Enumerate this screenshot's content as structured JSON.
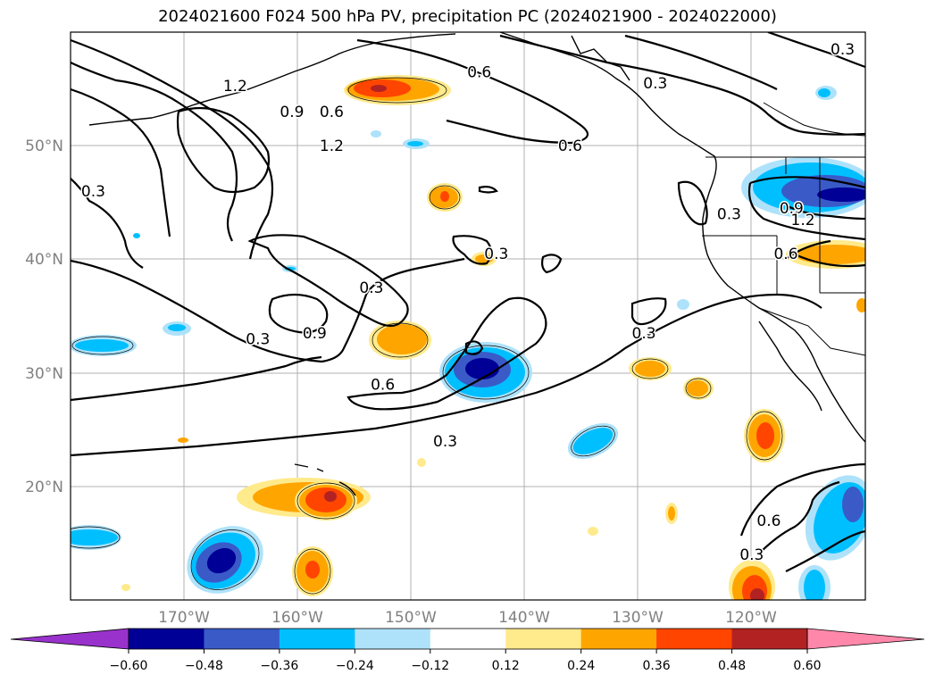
{
  "title": "2024021600 F024 500 hPa PV, precipitation PC (2024021900 - 2024022000)",
  "map": {
    "lat_labels": [
      "50°N",
      "40°N",
      "30°N",
      "20°N"
    ],
    "lon_labels": [
      "170°W",
      "160°W",
      "150°W",
      "140°W",
      "130°W",
      "120°W"
    ],
    "label_color": "#808080"
  },
  "contour_labels": [
    {
      "text": "1.2",
      "lon": -165.5,
      "lat": 55.3
    },
    {
      "text": "0.9",
      "lon": -160.5,
      "lat": 53.0
    },
    {
      "text": "0.6",
      "lon": -157.0,
      "lat": 53.0
    },
    {
      "text": "1.2",
      "lon": -157.0,
      "lat": 50.0
    },
    {
      "text": "0.3",
      "lon": -178.0,
      "lat": 46.0
    },
    {
      "text": "0.6",
      "lon": -144.0,
      "lat": 56.5
    },
    {
      "text": "0.6",
      "lon": -136.0,
      "lat": 50.0
    },
    {
      "text": "0.3",
      "lon": -128.5,
      "lat": 55.5
    },
    {
      "text": "0.3",
      "lon": -112.0,
      "lat": 58.5
    },
    {
      "text": "0.3",
      "lon": -142.5,
      "lat": 40.5
    },
    {
      "text": "0.3",
      "lon": -153.5,
      "lat": 37.5
    },
    {
      "text": "0.9",
      "lon": -158.5,
      "lat": 33.5
    },
    {
      "text": "0.3",
      "lon": -163.5,
      "lat": 33.0
    },
    {
      "text": "0.6",
      "lon": -152.5,
      "lat": 29.0
    },
    {
      "text": "0.3",
      "lon": -147.0,
      "lat": 24.0
    },
    {
      "text": "0.3",
      "lon": -129.5,
      "lat": 33.5
    },
    {
      "text": "0.3",
      "lon": -122.0,
      "lat": 44.0
    },
    {
      "text": "0.6",
      "lon": -117.0,
      "lat": 40.5
    },
    {
      "text": "0.9",
      "lon": -116.5,
      "lat": 44.5
    },
    {
      "text": "1.2",
      "lon": -115.5,
      "lat": 43.5
    },
    {
      "text": "0.6",
      "lon": -118.5,
      "lat": 17.0
    },
    {
      "text": "0.3",
      "lon": -120.0,
      "lat": 14.0
    }
  ],
  "colorbar": {
    "ticks": [
      "−0.60",
      "−0.48",
      "−0.36",
      "−0.24",
      "−0.12",
      "0.12",
      "0.24",
      "0.36",
      "0.48",
      "0.60"
    ],
    "under_color": "#9932cc",
    "over_color": "#ff88aa",
    "colors": [
      "#000096",
      "#3a5ac8",
      "#00bfff",
      "#aee2fa",
      "#ffffff",
      "#ffea8c",
      "#ffa500",
      "#ff4500",
      "#b22222"
    ]
  }
}
